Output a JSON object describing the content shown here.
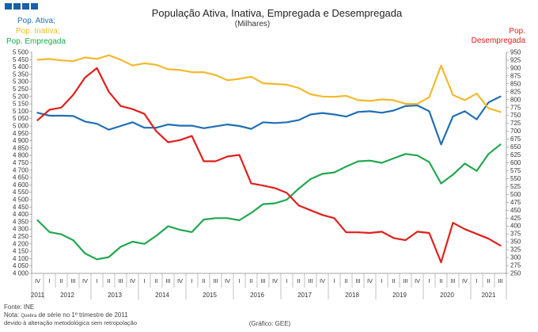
{
  "chart_data": {
    "type": "line",
    "title": "População Ativa, Inativa, Empregada  e Desempregada",
    "subtitle": "(Milhares)",
    "legend_left": [
      {
        "label": "Pop. Ativa;",
        "color": "#1f6fb5"
      },
      {
        "label": "Pop. Inativa;",
        "color": "#f2b92e"
      },
      {
        "label": "Pop. Empregada",
        "color": "#1fa84f"
      }
    ],
    "legend_right": {
      "label1": "Pop.",
      "label2": "Desempregada",
      "color": "#e0201c"
    },
    "left_axis": {
      "min": 4000,
      "max": 5500,
      "step": 50
    },
    "right_axis": {
      "min": 250,
      "max": 950,
      "step": 25
    },
    "quarter_labels": [
      "IV",
      "I",
      "II",
      "III",
      "IV",
      "I",
      "II",
      "III",
      "IV",
      "I",
      "II",
      "III",
      "IV",
      "I",
      "II",
      "III",
      "IV",
      "I",
      "II",
      "III",
      "IV",
      "I",
      "II",
      "III",
      "IV",
      "I",
      "II",
      "III",
      "IV",
      "I",
      "II",
      "III",
      "IV",
      "I",
      "II",
      "III",
      "IV",
      "I",
      "II",
      "III"
    ],
    "year_labels": [
      {
        "label": "2011",
        "index": 0
      },
      {
        "label": "2012",
        "index": 2.5
      },
      {
        "label": "2013",
        "index": 6.5
      },
      {
        "label": "2014",
        "index": 10.5
      },
      {
        "label": "2015",
        "index": 14.5
      },
      {
        "label": "2016",
        "index": 18.5
      },
      {
        "label": "2017",
        "index": 22.5
      },
      {
        "label": "2018",
        "index": 26.5
      },
      {
        "label": "2019",
        "index": 30.5
      },
      {
        "label": "2020",
        "index": 34.5
      },
      {
        "label": "2021",
        "index": 38
      }
    ],
    "series": [
      {
        "name": "Pop. Ativa",
        "axis": "left",
        "color": "#1f6fb5",
        "values": [
          5090,
          5070,
          5070,
          5068,
          5030,
          5015,
          4975,
          5000,
          5025,
          4988,
          4988,
          5010,
          5002,
          5002,
          4985,
          4998,
          5010,
          5000,
          4980,
          5025,
          5020,
          5025,
          5040,
          5078,
          5088,
          5078,
          5064,
          5095,
          5100,
          5090,
          5105,
          5135,
          5140,
          5100,
          4875,
          5065,
          5100,
          5045,
          5160,
          5200
        ]
      },
      {
        "name": "Pop. Inativa",
        "axis": "left",
        "color": "#f2b92e",
        "values": [
          5450,
          5455,
          5445,
          5440,
          5465,
          5455,
          5480,
          5450,
          5410,
          5425,
          5415,
          5385,
          5380,
          5365,
          5365,
          5345,
          5310,
          5320,
          5335,
          5290,
          5285,
          5280,
          5258,
          5215,
          5200,
          5198,
          5205,
          5175,
          5170,
          5180,
          5175,
          5150,
          5150,
          5195,
          5410,
          5210,
          5175,
          5220,
          5120,
          5095
        ]
      },
      {
        "name": "Pop. Empregada",
        "axis": "left",
        "color": "#1fa84f",
        "values": [
          4360,
          4280,
          4265,
          4225,
          4135,
          4095,
          4110,
          4180,
          4215,
          4200,
          4255,
          4320,
          4295,
          4280,
          4365,
          4375,
          4375,
          4360,
          4410,
          4470,
          4475,
          4500,
          4575,
          4640,
          4675,
          4685,
          4725,
          4760,
          4765,
          4750,
          4780,
          4810,
          4800,
          4755,
          4610,
          4670,
          4745,
          4695,
          4810,
          4875
        ]
      },
      {
        "name": "Pop. Desempregada",
        "axis": "right",
        "color": "#e0201c",
        "values": [
          735,
          768,
          775,
          815,
          870,
          900,
          825,
          780,
          770,
          755,
          700,
          665,
          672,
          685,
          605,
          605,
          620,
          625,
          535,
          528,
          520,
          505,
          465,
          450,
          435,
          425,
          380,
          380,
          378,
          382,
          362,
          355,
          382,
          378,
          285,
          410,
          390,
          375,
          360,
          338
        ]
      }
    ],
    "notes": {
      "source": "Fonte: INE",
      "note_prefix": "Nota: ",
      "note_small": "Quebra",
      "note_rest": " de série no 1º trimestre de 2011",
      "note2": "devido à alteração metodológica sem retropolação",
      "credit": "(Gráfico: GEE)"
    },
    "logo_color": "#1a5fa8"
  }
}
